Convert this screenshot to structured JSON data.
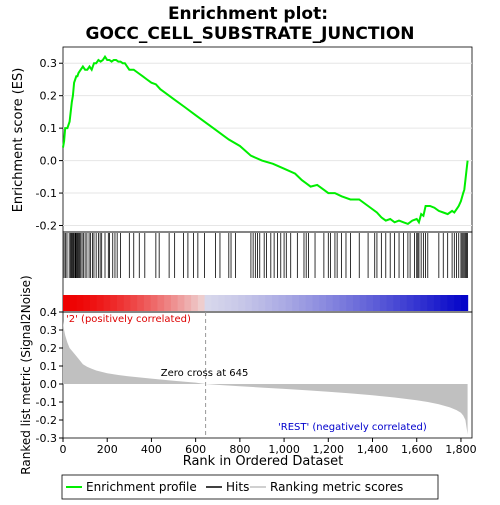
{
  "title_line1": "Enrichment plot:",
  "title_line2": "GOCC_CELL_SUBSTRATE_JUNCTION",
  "chart_data": [
    {
      "type": "line",
      "name": "Enrichment profile",
      "ylabel": "Enrichment score (ES)",
      "xlim": [
        0,
        1850
      ],
      "ylim": [
        -0.22,
        0.35
      ],
      "yticks": [
        -0.2,
        -0.1,
        0.0,
        0.1,
        0.2,
        0.3
      ],
      "ytick_labels": [
        "-0.2",
        "-0.1",
        "0.0",
        "0.1",
        "0.2",
        "0.3"
      ],
      "color": "#00ee00",
      "x": [
        0,
        5,
        10,
        20,
        30,
        40,
        45,
        50,
        55,
        60,
        65,
        70,
        80,
        90,
        100,
        110,
        120,
        130,
        140,
        150,
        160,
        170,
        180,
        190,
        200,
        210,
        220,
        230,
        240,
        250,
        260,
        270,
        280,
        290,
        300,
        320,
        340,
        360,
        380,
        400,
        420,
        440,
        460,
        480,
        500,
        550,
        600,
        650,
        700,
        750,
        800,
        850,
        900,
        950,
        1000,
        1050,
        1080,
        1100,
        1120,
        1150,
        1180,
        1200,
        1230,
        1260,
        1300,
        1340,
        1380,
        1420,
        1440,
        1460,
        1480,
        1500,
        1520,
        1540,
        1560,
        1580,
        1600,
        1610,
        1620,
        1630,
        1640,
        1660,
        1680,
        1700,
        1720,
        1740,
        1760,
        1770,
        1780,
        1790,
        1800,
        1810,
        1815,
        1820,
        1825,
        1830
      ],
      "y": [
        0.04,
        0.06,
        0.1,
        0.1,
        0.12,
        0.18,
        0.2,
        0.24,
        0.25,
        0.26,
        0.26,
        0.27,
        0.28,
        0.29,
        0.28,
        0.28,
        0.29,
        0.28,
        0.3,
        0.3,
        0.31,
        0.305,
        0.31,
        0.32,
        0.31,
        0.31,
        0.305,
        0.31,
        0.31,
        0.305,
        0.305,
        0.3,
        0.3,
        0.29,
        0.28,
        0.28,
        0.27,
        0.26,
        0.25,
        0.24,
        0.235,
        0.22,
        0.21,
        0.2,
        0.19,
        0.165,
        0.14,
        0.115,
        0.09,
        0.065,
        0.045,
        0.015,
        0.0,
        -0.01,
        -0.025,
        -0.04,
        -0.06,
        -0.07,
        -0.08,
        -0.075,
        -0.09,
        -0.1,
        -0.1,
        -0.11,
        -0.12,
        -0.12,
        -0.14,
        -0.16,
        -0.175,
        -0.185,
        -0.18,
        -0.19,
        -0.185,
        -0.19,
        -0.195,
        -0.185,
        -0.18,
        -0.19,
        -0.165,
        -0.17,
        -0.14,
        -0.14,
        -0.145,
        -0.155,
        -0.16,
        -0.165,
        -0.155,
        -0.16,
        -0.15,
        -0.14,
        -0.125,
        -0.1,
        -0.09,
        -0.06,
        -0.03,
        0.0
      ]
    },
    {
      "type": "barcode",
      "name": "Hits",
      "xlim": [
        0,
        1850
      ],
      "hits": [
        5,
        12,
        18,
        28,
        34,
        38,
        42,
        46,
        50,
        55,
        58,
        62,
        66,
        70,
        75,
        80,
        86,
        92,
        100,
        108,
        118,
        125,
        133,
        140,
        150,
        160,
        168,
        175,
        190,
        205,
        210,
        225,
        235,
        245,
        260,
        300,
        320,
        345,
        370,
        420,
        435,
        480,
        505,
        545,
        565,
        590,
        610,
        640,
        690,
        710,
        750,
        760,
        780,
        850,
        860,
        870,
        880,
        890,
        910,
        920,
        940,
        955,
        970,
        985,
        1000,
        1010,
        1030,
        1060,
        1090,
        1100,
        1110,
        1140,
        1180,
        1200,
        1210,
        1230,
        1240,
        1260,
        1280,
        1300,
        1340,
        1380,
        1410,
        1420,
        1440,
        1460,
        1480,
        1500,
        1520,
        1540,
        1560,
        1570,
        1590,
        1600,
        1605,
        1610,
        1620,
        1630,
        1640,
        1650,
        1700,
        1720,
        1740,
        1760,
        1770,
        1780,
        1790,
        1800,
        1805,
        1810,
        1815,
        1820,
        1825,
        1830
      ]
    },
    {
      "type": "area",
      "name": "Ranking metric scores",
      "xlabel": "Rank in Ordered Dataset",
      "ylabel": "Ranked list metric (Signal2Noise)",
      "xlim": [
        0,
        1850
      ],
      "ylim": [
        -0.3,
        0.4
      ],
      "xticks": [
        0,
        200,
        400,
        600,
        800,
        1000,
        1200,
        1400,
        1600,
        1800
      ],
      "xtick_labels": [
        "0",
        "200",
        "400",
        "600",
        "800",
        "1,000",
        "1,200",
        "1,400",
        "1,600",
        "1,800"
      ],
      "yticks": [
        -0.3,
        -0.2,
        -0.1,
        0.0,
        0.1,
        0.2,
        0.3,
        0.4
      ],
      "ytick_labels": [
        "-0.3",
        "-0.2",
        "-0.1",
        "0.0",
        "0.1",
        "0.2",
        "0.3",
        "0.4"
      ],
      "color": "#c0c0c0",
      "x": [
        0,
        5,
        10,
        20,
        30,
        50,
        70,
        90,
        110,
        130,
        150,
        200,
        250,
        300,
        400,
        500,
        600,
        645,
        700,
        800,
        900,
        1000,
        1100,
        1200,
        1300,
        1400,
        1500,
        1600,
        1650,
        1700,
        1750,
        1780,
        1800,
        1810,
        1820,
        1825,
        1830
      ],
      "y": [
        0.35,
        0.3,
        0.27,
        0.23,
        0.2,
        0.17,
        0.14,
        0.11,
        0.095,
        0.085,
        0.075,
        0.06,
        0.05,
        0.042,
        0.03,
        0.018,
        0.008,
        0.0,
        -0.005,
        -0.012,
        -0.02,
        -0.027,
        -0.035,
        -0.043,
        -0.052,
        -0.062,
        -0.075,
        -0.09,
        -0.1,
        -0.112,
        -0.13,
        -0.145,
        -0.16,
        -0.175,
        -0.2,
        -0.24,
        -0.28
      ],
      "zero_cross_x": 645,
      "annotations": {
        "zero_cross": "Zero cross at 645",
        "positive": "'2' (positively correlated)",
        "negative": "'REST' (negatively correlated)"
      }
    }
  ],
  "legend": {
    "items": [
      {
        "label": "Enrichment profile",
        "color": "#00ee00"
      },
      {
        "label": "Hits",
        "color": "#000000"
      },
      {
        "label": "Ranking metric scores",
        "color": "#c0c0c0"
      }
    ]
  },
  "colors": {
    "positive_text": "#dd0000",
    "negative_text": "#0000cc",
    "heat_red": "#ee0000",
    "heat_blue": "#0000cc"
  }
}
